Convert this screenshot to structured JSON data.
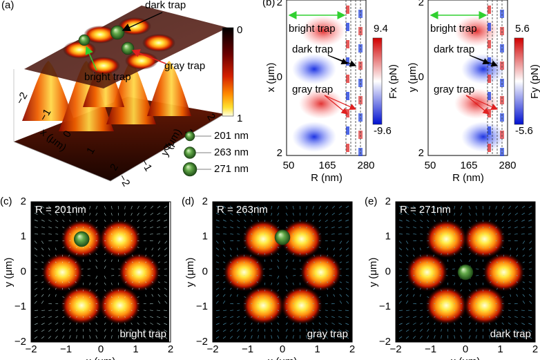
{
  "a": {
    "label": "(a)",
    "dark_trap": "dark trap",
    "gray_trap": "gray trap",
    "bright_trap": "bright trap",
    "colorbar_ticks": [
      "0",
      "1"
    ],
    "x_label": "x (μm)",
    "y_label": "y (μm)",
    "x_ticks": [
      "−2",
      "−1",
      "0",
      "1",
      "2"
    ],
    "y_ticks": [
      "−2",
      "−1",
      "0",
      "1",
      "2"
    ],
    "legend": [
      "201 nm",
      "263 nm",
      "271 nm"
    ]
  },
  "b": {
    "label": "(b)",
    "x_label": "R (nm)",
    "x_ticks": [
      "50",
      "165",
      "280"
    ],
    "maps": [
      {
        "y_label": "x (μm)",
        "y_ticks": [
          "2",
          "0",
          "2"
        ],
        "colorbar_label": "Fx (pN)",
        "colorbar_max": "9.4",
        "colorbar_min": "-9.6",
        "bright_trap": "bright trap",
        "dark_trap": "dark trap",
        "gray_trap": "gray trap"
      },
      {
        "y_label": "y (μm)",
        "y_ticks": [
          "2",
          "0",
          "2"
        ],
        "colorbar_label": "Fy (pN)",
        "colorbar_max": "5.6",
        "colorbar_min": "-5.6",
        "bright_trap": "bright trap",
        "dark_trap": "dark trap",
        "gray_trap": "gray trap"
      }
    ]
  },
  "c": {
    "label": "(c)",
    "radius": "R = 201nm",
    "trap": "bright trap",
    "x_label": "x (μm)",
    "y_label": "y (μm)",
    "x_ticks": [
      "−2",
      "−1",
      "0",
      "1",
      "2"
    ],
    "y_ticks": [
      "2",
      "1",
      "0",
      "−1",
      "−2"
    ]
  },
  "d": {
    "label": "(d)",
    "radius": "R = 263nm",
    "trap": "gray trap",
    "x_label": "x (μm)",
    "y_label": "y (μm)",
    "x_ticks": [
      "−2",
      "−1",
      "0",
      "1",
      "2"
    ],
    "y_ticks": [
      "2",
      "1",
      "0",
      "−1",
      "−2"
    ]
  },
  "e": {
    "label": "(e)",
    "radius": "R = 271nm",
    "trap": "dark trap",
    "x_label": "x (μm)",
    "y_label": "y (μm)",
    "x_ticks": [
      "−2",
      "−1",
      "0",
      "1",
      "2"
    ],
    "y_ticks": [
      "2",
      "1",
      "0",
      "−1",
      "−2"
    ]
  }
}
